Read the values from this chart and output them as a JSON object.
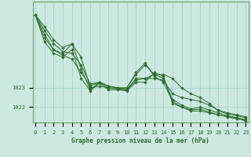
{
  "title": "Graphe pression niveau de la mer (hPa)",
  "xlabel_hours": [
    0,
    1,
    2,
    3,
    4,
    5,
    6,
    7,
    8,
    9,
    10,
    11,
    12,
    13,
    14,
    15,
    16,
    17,
    18,
    19,
    20,
    21,
    22,
    23
  ],
  "yticks": [
    1022,
    1023
  ],
  "ylim": [
    1021.2,
    1027.5
  ],
  "xlim": [
    -0.3,
    23.3
  ],
  "bg_color": "#cce8e0",
  "grid_color": "#a8d4cc",
  "line_color": "#2d6b2d",
  "axis_color": "#4a8a4a",
  "tick_color": "#2d6b2d",
  "series": [
    [
      1026.8,
      1026.2,
      1025.5,
      1025.1,
      1025.3,
      1024.6,
      1023.0,
      1023.1,
      1023.0,
      1023.0,
      1023.0,
      1023.7,
      1024.2,
      1023.7,
      1023.7,
      1023.5,
      1023.0,
      1022.7,
      1022.5,
      1022.2,
      1021.8,
      1021.65,
      1021.55,
      1021.45
    ],
    [
      1026.8,
      1026.0,
      1025.3,
      1024.9,
      1024.8,
      1024.2,
      1023.2,
      1023.3,
      1023.1,
      1023.0,
      1022.9,
      1023.5,
      1023.5,
      1023.5,
      1023.4,
      1022.7,
      1022.5,
      1022.4,
      1022.3,
      1022.1,
      1021.85,
      1021.7,
      1021.6,
      1021.5
    ],
    [
      1026.8,
      1025.8,
      1025.0,
      1024.8,
      1025.3,
      1024.0,
      1022.9,
      1023.3,
      1023.1,
      1023.0,
      1023.0,
      1023.8,
      1024.3,
      1023.6,
      1023.3,
      1022.3,
      1022.0,
      1021.8,
      1021.8,
      1021.7,
      1021.6,
      1021.5,
      1021.4,
      1021.3
    ],
    [
      1026.8,
      1025.6,
      1025.0,
      1024.7,
      1024.5,
      1023.8,
      1023.1,
      1023.3,
      1023.0,
      1022.95,
      1022.9,
      1023.4,
      1023.5,
      1023.7,
      1023.5,
      1022.4,
      1022.1,
      1021.9,
      1022.0,
      1021.85,
      1021.7,
      1021.55,
      1021.45,
      1021.35
    ],
    [
      1026.8,
      1025.4,
      1024.8,
      1024.6,
      1025.0,
      1023.5,
      1022.85,
      1023.25,
      1022.9,
      1022.9,
      1022.85,
      1023.3,
      1023.3,
      1023.8,
      1023.6,
      1022.2,
      1022.0,
      1021.85,
      1021.9,
      1021.75,
      1021.6,
      1021.5,
      1021.4,
      1021.3
    ]
  ],
  "marker": "D",
  "markersize": 1.8,
  "linewidth": 0.7,
  "tick_fontsize": 5.0,
  "label_fontsize": 5.5
}
